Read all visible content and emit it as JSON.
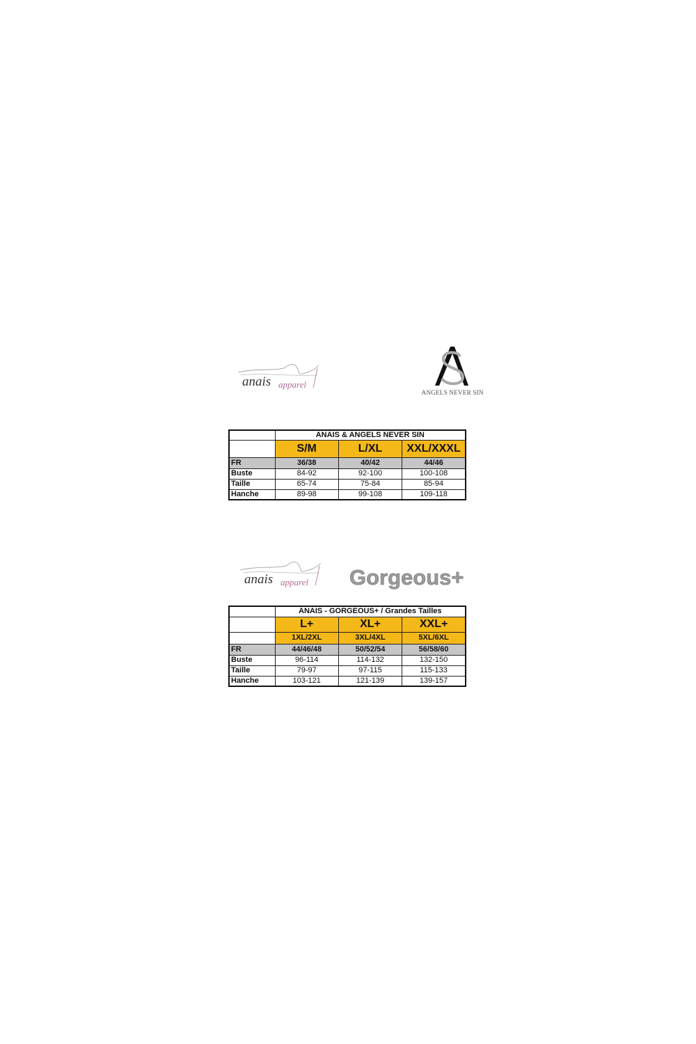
{
  "logos": {
    "anais_1": {
      "brand": "anais",
      "suffix": "apparel"
    },
    "ans": {
      "monogram": "AS",
      "name": "ANGELS NEVER SIN"
    },
    "anais_2": {
      "brand": "anais",
      "suffix": "apparel"
    },
    "gorgeous": {
      "name": "Gorgeous+"
    }
  },
  "colors": {
    "size_header": "#f5b819",
    "fr_row": "#c6c6c6"
  },
  "table1": {
    "title": "ANAIS & ANGELS NEVER SIN",
    "sizes": [
      "S/M",
      "L/XL",
      "XXL/XXXL"
    ],
    "rows": [
      {
        "label": "FR",
        "values": [
          "36/38",
          "40/42",
          "44/46"
        ]
      },
      {
        "label": "Buste",
        "values": [
          "84-92",
          "92-100",
          "100-108"
        ]
      },
      {
        "label": "Taille",
        "values": [
          "65-74",
          "75-84",
          "85-94"
        ]
      },
      {
        "label": "Hanche",
        "values": [
          "89-98",
          "99-108",
          "109-118"
        ]
      }
    ]
  },
  "table2": {
    "title": "ANAIS - GORGEOUS+ / Grandes Tailles",
    "sizes": [
      "L+",
      "XL+",
      "XXL+"
    ],
    "subsizes": [
      "1XL/2XL",
      "3XL/4XL",
      "5XL/6XL"
    ],
    "rows": [
      {
        "label": "FR",
        "values": [
          "44/46/48",
          "50/52/54",
          "56/58/60"
        ]
      },
      {
        "label": "Buste",
        "values": [
          "96-114",
          "114-132",
          "132-150"
        ]
      },
      {
        "label": "Taille",
        "values": [
          "79-97",
          "97-115",
          "115-133"
        ]
      },
      {
        "label": "Hanche",
        "values": [
          "103-121",
          "121-139",
          "139-157"
        ]
      }
    ]
  }
}
